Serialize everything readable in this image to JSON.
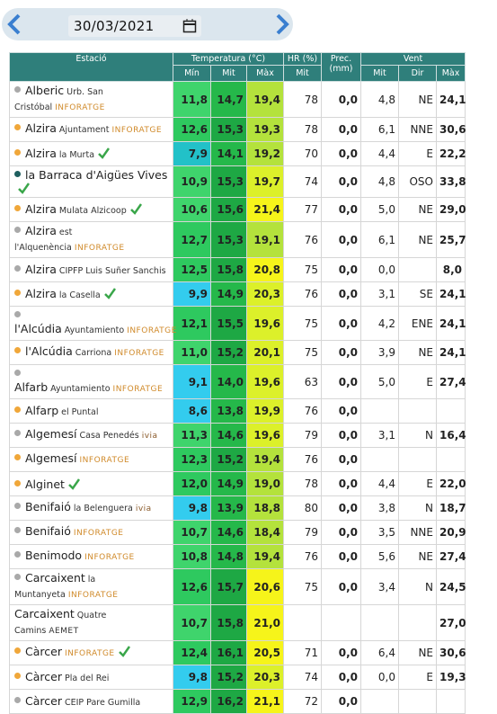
{
  "date": "30/03/2021",
  "table": {
    "headers": {
      "station": "Estació",
      "temp": "Temperatura (°C)",
      "hr": "HR (%)",
      "prec": "Prec. (mm)",
      "wind": "Vent",
      "sub": [
        "Mín",
        "Mit",
        "Màx",
        "Mit",
        "Mit",
        "Dir",
        "Màx"
      ]
    },
    "rows": [
      {
        "name": "Alberic",
        "place": "Urb. San Cristóbal",
        "source": "INFORATGE",
        "marker": "gray",
        "values": [
          "11,8",
          "14,7",
          "19,4",
          "78",
          "0,0",
          "4,8",
          "NE",
          "24,1"
        ]
      },
      {
        "name": "Alzira",
        "place": "Ajuntament",
        "source": "INFORATGE",
        "marker": "orange",
        "values": [
          "12,6",
          "15,3",
          "19,3",
          "78",
          "0,0",
          "6,1",
          "NNE",
          "30,6"
        ]
      },
      {
        "name": "Alzira",
        "place": "la Murta",
        "verified": true,
        "marker": "orange",
        "values": [
          "7,9",
          "14,1",
          "19,2",
          "70",
          "0,0",
          "4,4",
          "E",
          "22,2"
        ]
      },
      {
        "name": "la Barraca d'Aigües Vives",
        "verified": true,
        "marker": "teal",
        "values": [
          "10,9",
          "15,3",
          "19,7",
          "74",
          "0,0",
          "4,8",
          "OSO",
          "33,8"
        ]
      },
      {
        "name": "Alzira",
        "place": "Mulata Alzicoop",
        "verified": true,
        "marker": "orange",
        "values": [
          "10,6",
          "15,6",
          "21,4",
          "77",
          "0,0",
          "5,0",
          "NE",
          "29,0"
        ]
      },
      {
        "name": "Alzira",
        "place": "est l'Alquenència",
        "source": "INFORATGE",
        "marker": "gray",
        "values": [
          "12,7",
          "15,3",
          "19,1",
          "76",
          "0,0",
          "6,1",
          "NE",
          "25,7"
        ]
      },
      {
        "name": "Alzira",
        "place": "CIPFP Luis Suñer Sanchis",
        "marker": "gray",
        "values": [
          "12,5",
          "15,8",
          "20,8",
          "75",
          "0,0",
          "0,0",
          null,
          "8,0"
        ]
      },
      {
        "name": "Alzira",
        "place": "la Casella",
        "verified": true,
        "marker": "orange",
        "values": [
          "9,9",
          "14,9",
          "20,3",
          "76",
          "0,0",
          "3,1",
          "SE",
          "24,1"
        ]
      },
      {
        "name": "l'Alcúdia",
        "place": "Ayuntamiento",
        "source": "INFORATGE",
        "marker": "gray",
        "values": [
          "12,1",
          "15,5",
          "19,6",
          "75",
          "0,0",
          "4,2",
          "ENE",
          "24,1"
        ]
      },
      {
        "name": "l'Alcúdia",
        "place": "Carriona",
        "source": "INFORATGE",
        "marker": "orange",
        "values": [
          "11,0",
          "15,2",
          "20,1",
          "75",
          "0,0",
          "3,9",
          "NE",
          "24,1"
        ]
      },
      {
        "name": "Alfarb",
        "place": "Ayuntamiento",
        "source": "INFORATGE",
        "marker": "gray",
        "values": [
          "9,1",
          "14,0",
          "19,6",
          "63",
          "0,0",
          "5,0",
          "E",
          "27,4"
        ]
      },
      {
        "name": "Alfarp",
        "place": "el Puntal",
        "marker": "orange",
        "values": [
          "8,6",
          "13,8",
          "19,9",
          "76",
          "0,0",
          null,
          null,
          null
        ]
      },
      {
        "name": "Algemesí",
        "place": "Casa Penedés",
        "source": "ivia",
        "marker": "gray",
        "values": [
          "11,3",
          "14,6",
          "19,6",
          "79",
          "0,0",
          "3,1",
          "N",
          "16,4"
        ]
      },
      {
        "name": "Algemesí",
        "source": "INFORATGE",
        "marker": "orange",
        "values": [
          "12,3",
          "15,2",
          "19,4",
          "76",
          "0,0",
          null,
          null,
          null
        ]
      },
      {
        "name": "Alginet",
        "verified": true,
        "marker": "orange",
        "values": [
          "12,0",
          "14,9",
          "19,0",
          "78",
          "0,0",
          "4,4",
          "E",
          "22,0"
        ]
      },
      {
        "name": "Benifaió",
        "place": "la Belenguera",
        "source": "ivia",
        "marker": "gray",
        "values": [
          "9,8",
          "13,9",
          "18,8",
          "80",
          "0,0",
          "3,8",
          "N",
          "18,7"
        ]
      },
      {
        "name": "Benifaió",
        "source": "INFORATGE",
        "marker": "gray",
        "values": [
          "10,7",
          "14,6",
          "18,4",
          "79",
          "0,0",
          "3,5",
          "NNE",
          "20,9"
        ]
      },
      {
        "name": "Benimodo",
        "source": "INFORATGE",
        "marker": "gray",
        "values": [
          "10,8",
          "14,8",
          "19,4",
          "76",
          "0,0",
          "5,6",
          "NE",
          "27,4"
        ]
      },
      {
        "name": "Carcaixent",
        "place": "la Muntanyeta",
        "source": "INFORATGE",
        "marker": "gray",
        "values": [
          "12,6",
          "15,7",
          "20,6",
          "75",
          "0,0",
          "3,4",
          "N",
          "24,5"
        ]
      },
      {
        "name": "Carcaixent",
        "place": "Quatre Camins",
        "source": "AEMET",
        "values": [
          "10,7",
          "15,8",
          "21,0",
          null,
          null,
          null,
          null,
          "27,0"
        ]
      },
      {
        "name": "Càrcer",
        "source": "INFORATGE",
        "verified": true,
        "marker": "orange",
        "values": [
          "12,4",
          "16,1",
          "20,5",
          "71",
          "0,0",
          "6,4",
          "NE",
          "30,6"
        ]
      },
      {
        "name": "Càrcer",
        "place": "Pla del Rei",
        "marker": "orange",
        "values": [
          "9,8",
          "15,2",
          "20,3",
          "74",
          "0,0",
          "0,0",
          "E",
          "19,3"
        ]
      },
      {
        "name": "Càrcer",
        "place": "CEIP Pare Gumilla",
        "marker": "gray",
        "values": [
          "12,9",
          "16,2",
          "21,1",
          "72",
          "0,0",
          null,
          null,
          null
        ]
      }
    ]
  }
}
